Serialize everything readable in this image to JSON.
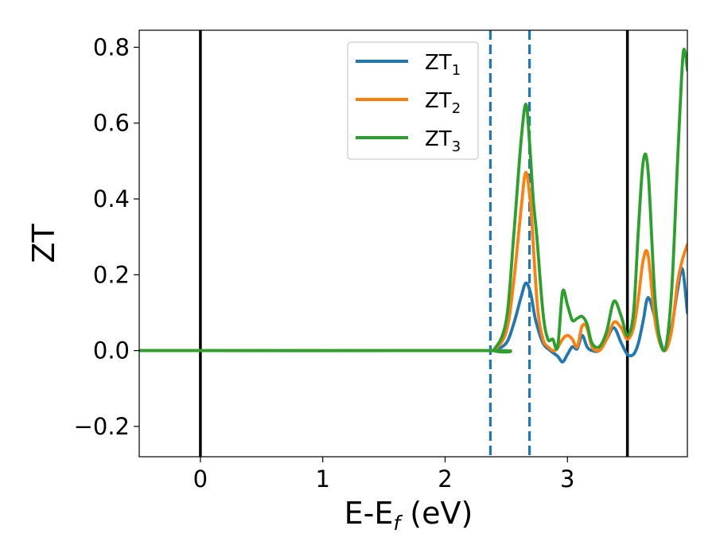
{
  "chart_data": {
    "type": "line",
    "title": "",
    "xlabel": "E-E",
    "xlabel_sub": "f",
    "xlabel_unit": " (eV)",
    "ylabel": "ZT",
    "xlim": [
      -0.5,
      3.98
    ],
    "ylim": [
      -0.28,
      0.845
    ],
    "xticks": [
      0,
      1,
      2,
      3
    ],
    "xtick_labels": [
      "0",
      "1",
      "2",
      "3"
    ],
    "yticks": [
      -0.2,
      0.0,
      0.2,
      0.4,
      0.6,
      0.8
    ],
    "ytick_labels": [
      "−0.2",
      "0.0",
      "0.2",
      "0.4",
      "0.6",
      "0.8"
    ],
    "grid": false,
    "legend_position": "top-center",
    "vlines": [
      {
        "x": 0.0,
        "style": "solid",
        "color": "#000000"
      },
      {
        "x": 3.49,
        "style": "solid",
        "color": "#000000"
      },
      {
        "x": 2.37,
        "style": "dashed",
        "color": "#1f77b4"
      },
      {
        "x": 2.69,
        "style": "dashed",
        "color": "#1f77b4"
      }
    ],
    "series": [
      {
        "name": "ZT",
        "name_sub": "1",
        "color": "#1f77b4",
        "x": [
          -0.5,
          2.3,
          2.4,
          2.5,
          2.56,
          2.62,
          2.66,
          2.7,
          2.74,
          2.8,
          2.86,
          2.92,
          2.96,
          3.0,
          3.04,
          3.08,
          3.12,
          3.16,
          3.2,
          3.26,
          3.32,
          3.38,
          3.44,
          3.49,
          3.54,
          3.58,
          3.62,
          3.66,
          3.72,
          3.79,
          3.85,
          3.9,
          3.94,
          3.98
        ],
        "values": [
          0,
          0,
          0.001,
          0.02,
          0.07,
          0.14,
          0.178,
          0.15,
          0.08,
          0.02,
          0.0,
          -0.015,
          -0.03,
          -0.01,
          0.01,
          0.005,
          0.04,
          0.01,
          0.0,
          0.0,
          0.03,
          0.06,
          0.02,
          -0.01,
          -0.01,
          0.02,
          0.08,
          0.14,
          0.08,
          0.0,
          0.06,
          0.16,
          0.215,
          0.1
        ]
      },
      {
        "name": "ZT",
        "name_sub": "2",
        "color": "#ff7f0e",
        "x": [
          -0.5,
          2.3,
          2.4,
          2.5,
          2.56,
          2.62,
          2.66,
          2.7,
          2.73,
          2.76,
          2.8,
          2.84,
          2.9,
          2.96,
          3.0,
          3.04,
          3.08,
          3.12,
          3.16,
          3.2,
          3.26,
          3.32,
          3.38,
          3.44,
          3.49,
          3.54,
          3.58,
          3.62,
          3.66,
          3.72,
          3.79,
          3.85,
          3.9,
          3.94,
          3.98
        ],
        "values": [
          0,
          0,
          0.002,
          0.05,
          0.18,
          0.37,
          0.47,
          0.38,
          0.23,
          0.1,
          0.03,
          0.01,
          0.0,
          0.03,
          0.04,
          0.03,
          0.01,
          0.065,
          0.06,
          0.01,
          0.0,
          0.03,
          0.075,
          0.06,
          0.03,
          0.06,
          0.14,
          0.24,
          0.25,
          0.07,
          0.0,
          0.05,
          0.18,
          0.24,
          0.28
        ]
      },
      {
        "name": "ZT",
        "name_sub": "3",
        "color": "#2ca02c",
        "x": [
          -0.5,
          2.3,
          2.4,
          2.5,
          2.56,
          2.62,
          2.66,
          2.69,
          2.72,
          2.75,
          2.8,
          2.84,
          2.88,
          2.92,
          2.96,
          3.0,
          3.04,
          3.08,
          3.12,
          3.16,
          3.2,
          3.26,
          3.32,
          3.38,
          3.44,
          3.49,
          3.54,
          3.58,
          3.62,
          3.66,
          3.72,
          3.79,
          3.85,
          3.9,
          3.94,
          3.96,
          3.98
        ],
        "values": [
          0,
          0,
          0.003,
          0.08,
          0.3,
          0.55,
          0.65,
          0.55,
          0.4,
          0.3,
          0.1,
          0.03,
          0.03,
          0.01,
          0.155,
          0.12,
          0.08,
          0.085,
          0.09,
          0.07,
          0.02,
          0.01,
          0.05,
          0.13,
          0.09,
          0.04,
          0.1,
          0.32,
          0.5,
          0.47,
          0.12,
          0.0,
          0.15,
          0.5,
          0.76,
          0.79,
          0.74
        ]
      }
    ]
  }
}
